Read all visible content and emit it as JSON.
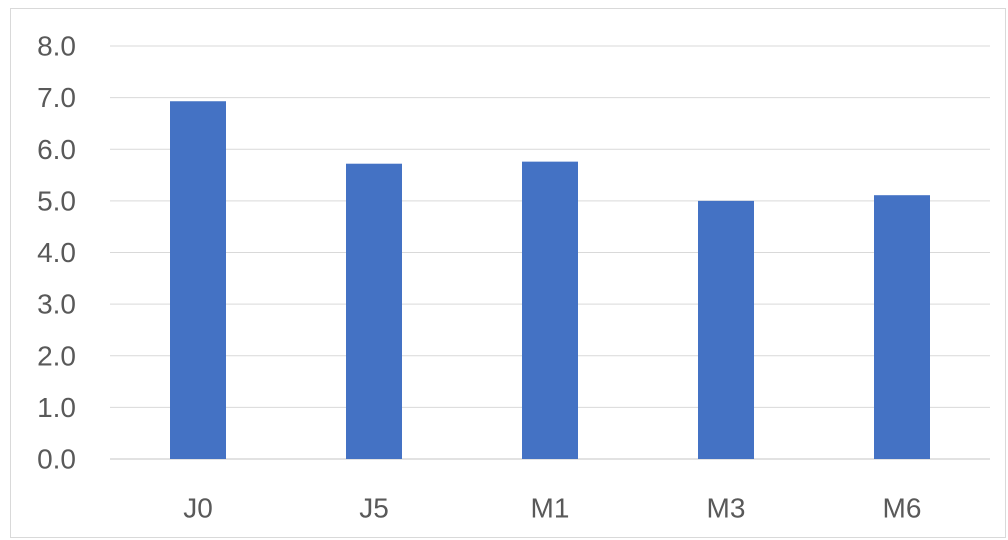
{
  "chart_data": {
    "type": "bar",
    "categories": [
      "J0",
      "J5",
      "M1",
      "M3",
      "M6"
    ],
    "values": [
      6.93,
      5.72,
      5.76,
      5.0,
      5.11
    ],
    "yticks": [
      "0.0",
      "1.0",
      "2.0",
      "3.0",
      "4.0",
      "5.0",
      "6.0",
      "7.0",
      "8.0"
    ],
    "ylim": [
      0,
      8
    ],
    "grid": true,
    "bar_color": "#4472c4",
    "grid_color": "#d9d9d9",
    "title": "",
    "xlabel": "",
    "ylabel": ""
  }
}
